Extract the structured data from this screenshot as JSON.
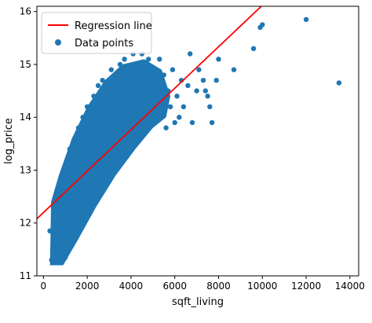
{
  "chart_data": {
    "type": "scatter",
    "xlabel": "sqft_living",
    "ylabel": "log_price",
    "xlim": [
      -300,
      14400
    ],
    "ylim": [
      11,
      16.1
    ],
    "xticks": [
      0,
      2000,
      4000,
      6000,
      8000,
      10000,
      12000,
      14000
    ],
    "yticks": [
      11,
      12,
      13,
      14,
      15,
      16
    ],
    "grid": false,
    "legend_position": "top-left",
    "series": [
      {
        "name": "Regression line",
        "type": "line",
        "color": "#ff0000",
        "x": [
          -300,
          10000
        ],
        "y": [
          12.08,
          16.12
        ]
      },
      {
        "name": "Data points",
        "type": "scatter",
        "color": "#1f77b4",
        "points": [
          [
            290,
            11.85
          ],
          [
            370,
            11.3
          ],
          [
            450,
            12.3
          ],
          [
            520,
            11.6
          ],
          [
            600,
            11.25
          ],
          [
            650,
            12.0
          ],
          [
            700,
            11.45
          ],
          [
            780,
            11.7
          ],
          [
            850,
            11.5
          ],
          [
            900,
            11.9
          ],
          [
            950,
            12.6
          ],
          [
            1000,
            11.35
          ],
          [
            1050,
            12.2
          ],
          [
            1100,
            12.8
          ],
          [
            1150,
            11.7
          ],
          [
            1200,
            13.4
          ],
          [
            1250,
            12.5
          ],
          [
            1300,
            11.9
          ],
          [
            1350,
            13.0
          ],
          [
            1400,
            12.1
          ],
          [
            1450,
            13.6
          ],
          [
            1500,
            12.4
          ],
          [
            1550,
            12.9
          ],
          [
            1600,
            13.8
          ],
          [
            1650,
            12.3
          ],
          [
            1700,
            13.2
          ],
          [
            1750,
            12.7
          ],
          [
            1800,
            14.0
          ],
          [
            1850,
            12.5
          ],
          [
            1900,
            13.5
          ],
          [
            1950,
            12.8
          ],
          [
            2000,
            14.2
          ],
          [
            2050,
            12.9
          ],
          [
            2100,
            13.7
          ],
          [
            2200,
            13.1
          ],
          [
            2300,
            14.4
          ],
          [
            2400,
            13.3
          ],
          [
            2500,
            14.6
          ],
          [
            2600,
            13.4
          ],
          [
            2700,
            14.7
          ],
          [
            2800,
            13.6
          ],
          [
            2900,
            14.5
          ],
          [
            3000,
            13.7
          ],
          [
            3100,
            14.9
          ],
          [
            3200,
            13.8
          ],
          [
            3300,
            14.8
          ],
          [
            3400,
            14.0
          ],
          [
            3500,
            15.0
          ],
          [
            3600,
            14.1
          ],
          [
            3700,
            15.1
          ],
          [
            3800,
            14.2
          ],
          [
            3900,
            14.9
          ],
          [
            4000,
            14.3
          ],
          [
            4100,
            15.2
          ],
          [
            4200,
            14.4
          ],
          [
            4300,
            15.0
          ],
          [
            4400,
            14.5
          ],
          [
            4500,
            15.2
          ],
          [
            4600,
            14.1
          ],
          [
            4700,
            14.6
          ],
          [
            4800,
            15.1
          ],
          [
            4900,
            14.4
          ],
          [
            5000,
            14.9
          ],
          [
            5100,
            13.9
          ],
          [
            5200,
            14.6
          ],
          [
            5300,
            15.1
          ],
          [
            5400,
            14.3
          ],
          [
            5500,
            14.8
          ],
          [
            5600,
            13.8
          ],
          [
            5700,
            14.5
          ],
          [
            5800,
            14.2
          ],
          [
            5900,
            14.9
          ],
          [
            6000,
            13.9
          ],
          [
            6100,
            14.4
          ],
          [
            6200,
            14.0
          ],
          [
            6300,
            14.7
          ],
          [
            6400,
            14.2
          ],
          [
            6600,
            14.6
          ],
          [
            6700,
            15.2
          ],
          [
            6800,
            13.9
          ],
          [
            7000,
            14.5
          ],
          [
            7100,
            14.9
          ],
          [
            7300,
            14.7
          ],
          [
            7400,
            14.5
          ],
          [
            7500,
            14.4
          ],
          [
            7600,
            14.2
          ],
          [
            7700,
            13.9
          ],
          [
            7900,
            14.7
          ],
          [
            8000,
            15.1
          ],
          [
            8700,
            14.9
          ],
          [
            9600,
            15.3
          ],
          [
            9900,
            15.7
          ],
          [
            10000,
            15.75
          ],
          [
            12000,
            15.85
          ],
          [
            13500,
            14.65
          ]
        ]
      }
    ]
  }
}
